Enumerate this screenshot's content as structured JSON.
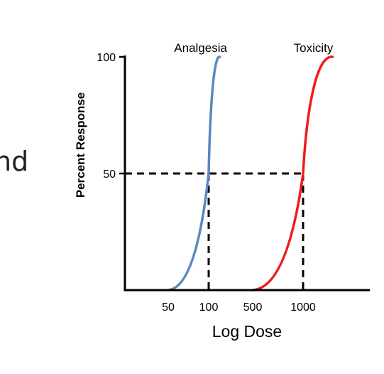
{
  "slide_fragment": "nd",
  "chart_data": {
    "type": "line",
    "xlabel": "Log Dose",
    "ylabel": "Percent Response",
    "x_scale": "log",
    "x_ticks": [
      50,
      100,
      500,
      1000
    ],
    "x_tick_labels": [
      "50",
      "100",
      "500",
      "1000"
    ],
    "y_ticks": [
      50,
      100
    ],
    "y_tick_labels": [
      "50",
      "100"
    ],
    "ylim": [
      0,
      100
    ],
    "grid": false,
    "legend": "none",
    "series": [
      {
        "name": "Analgesia",
        "color": "#5b87bf",
        "x": [
          50,
          100,
          150
        ],
        "y": [
          0,
          50,
          100
        ]
      },
      {
        "name": "Toxicity",
        "color": "#ee1c1c",
        "x": [
          500,
          1000,
          1500
        ],
        "y": [
          0,
          50,
          100
        ]
      }
    ],
    "reference_lines": [
      {
        "x": 100,
        "y": 50
      },
      {
        "x": 1000,
        "y": 50
      }
    ]
  }
}
